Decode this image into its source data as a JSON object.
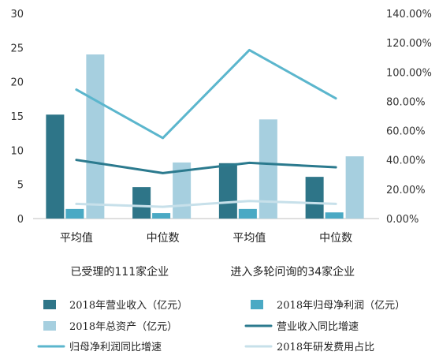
{
  "chart_data": {
    "type": "bar",
    "categories": [
      "平均值",
      "中位数",
      "平均值",
      "中位数"
    ],
    "groups": [
      "已受理的111家企业",
      "进入多轮问询的34家企业"
    ],
    "y_left": {
      "ylim": [
        0,
        30
      ],
      "ticks": [
        "0",
        "5",
        "10",
        "15",
        "20",
        "25",
        "30"
      ]
    },
    "y_right": {
      "ylim": [
        0,
        140
      ],
      "ticks": [
        "0.00%",
        "20.00%",
        "40.00%",
        "60.00%",
        "80.00%",
        "100.00%",
        "120.00%",
        "140.00%"
      ]
    },
    "series": [
      {
        "name": "2018年营业收入（亿元）",
        "kind": "bar",
        "axis": "left",
        "color": "#2e7588",
        "values": [
          15.2,
          4.6,
          8.1,
          6.1
        ]
      },
      {
        "name": "2018年归母净利润（亿元）",
        "kind": "bar",
        "axis": "left",
        "color": "#4aa9c4",
        "values": [
          1.4,
          0.8,
          1.4,
          0.9
        ]
      },
      {
        "name": "2018年总资产（亿元）",
        "kind": "bar",
        "axis": "left",
        "color": "#a6cfdf",
        "values": [
          24.0,
          8.2,
          14.5,
          9.1
        ]
      },
      {
        "name": "营业收入同比增速",
        "kind": "line",
        "axis": "right",
        "color": "#2b7a8e",
        "values": [
          40,
          31,
          38,
          35
        ]
      },
      {
        "name": "归母净利润同比增速",
        "kind": "line",
        "axis": "right",
        "color": "#5bb6cd",
        "values": [
          88,
          55,
          115,
          82
        ]
      },
      {
        "name": "2018年研发费用占比",
        "kind": "line",
        "axis": "right",
        "color": "#c7e0ea",
        "values": [
          10,
          8,
          12,
          10
        ]
      }
    ],
    "legend_position": "bottom"
  }
}
